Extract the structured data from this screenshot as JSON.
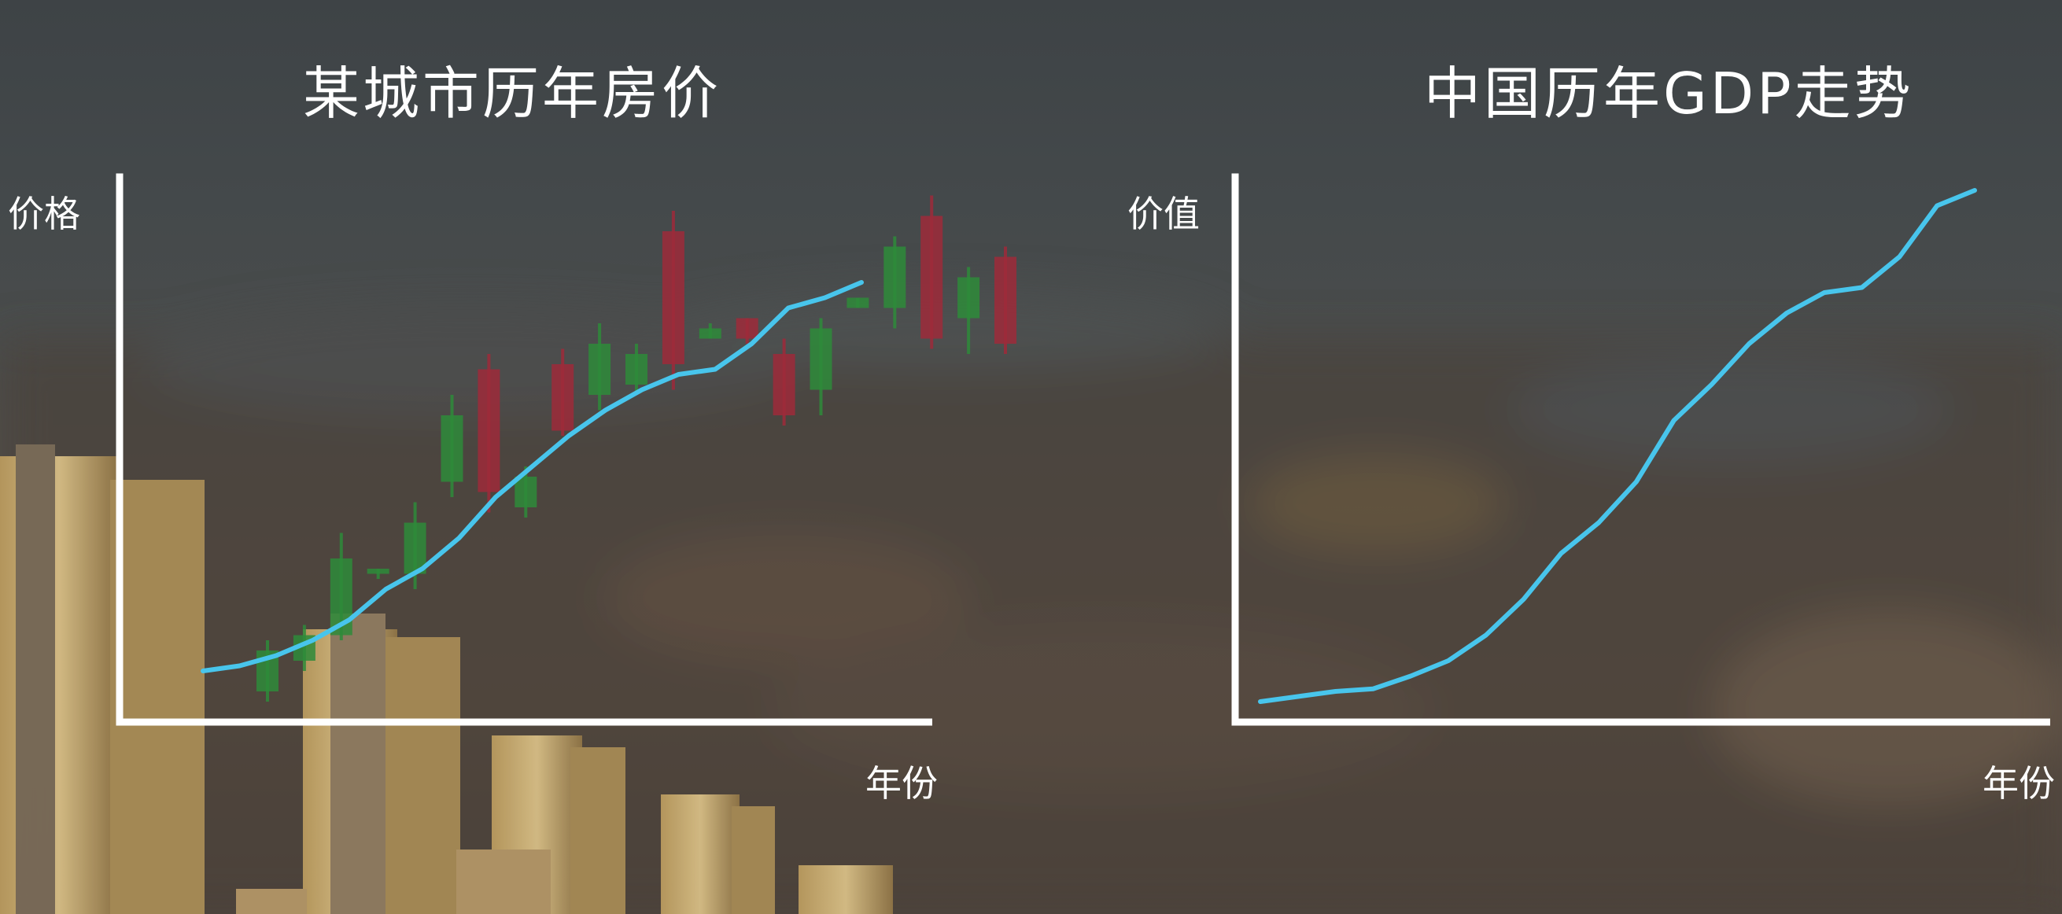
{
  "chart_data": [
    {
      "type": "candlestick",
      "title": "某城市历年房价",
      "xlabel": "年份",
      "ylabel": "价格",
      "ylim": [
        0,
        100
      ],
      "grid": false,
      "candles": [
        {
          "open": 4,
          "close": 12,
          "low": 2,
          "high": 14
        },
        {
          "open": 10,
          "close": 15,
          "low": 8,
          "high": 17
        },
        {
          "open": 15,
          "close": 30,
          "low": 14,
          "high": 35
        },
        {
          "open": 27,
          "close": 28,
          "low": 26,
          "high": 28
        },
        {
          "open": 27,
          "close": 37,
          "low": 24,
          "high": 41
        },
        {
          "open": 45,
          "close": 58,
          "low": 42,
          "high": 62
        },
        {
          "open": 67,
          "close": 43,
          "low": 39,
          "high": 70
        },
        {
          "open": 40,
          "close": 46,
          "low": 38,
          "high": 48
        },
        {
          "open": 68,
          "close": 55,
          "low": 54,
          "high": 71
        },
        {
          "open": 62,
          "close": 72,
          "low": 59,
          "high": 76
        },
        {
          "open": 64,
          "close": 70,
          "low": 62,
          "high": 72
        },
        {
          "open": 94,
          "close": 68,
          "low": 63,
          "high": 98
        },
        {
          "open": 73,
          "close": 75,
          "low": 73,
          "high": 76
        },
        {
          "open": 77,
          "close": 73,
          "low": 72,
          "high": 77
        },
        {
          "open": 70,
          "close": 58,
          "low": 56,
          "high": 73
        },
        {
          "open": 63,
          "close": 75,
          "low": 58,
          "high": 77
        },
        {
          "open": 79,
          "close": 81,
          "low": 79,
          "high": 81
        },
        {
          "open": 79,
          "close": 91,
          "low": 75,
          "high": 93
        },
        {
          "open": 97,
          "close": 73,
          "low": 71,
          "high": 101
        },
        {
          "open": 77,
          "close": 85,
          "low": 70,
          "high": 87
        },
        {
          "open": 89,
          "close": 72,
          "low": 70,
          "high": 91
        }
      ],
      "trend_line": [
        {
          "x": 0,
          "y": 8
        },
        {
          "x": 1,
          "y": 9
        },
        {
          "x": 2,
          "y": 11
        },
        {
          "x": 3,
          "y": 14
        },
        {
          "x": 4,
          "y": 18
        },
        {
          "x": 5,
          "y": 24
        },
        {
          "x": 6,
          "y": 28
        },
        {
          "x": 7,
          "y": 34
        },
        {
          "x": 8,
          "y": 42
        },
        {
          "x": 9,
          "y": 48
        },
        {
          "x": 10,
          "y": 54
        },
        {
          "x": 11,
          "y": 59
        },
        {
          "x": 12,
          "y": 63
        },
        {
          "x": 13,
          "y": 66
        },
        {
          "x": 14,
          "y": 67
        },
        {
          "x": 15,
          "y": 72
        },
        {
          "x": 16,
          "y": 79
        },
        {
          "x": 17,
          "y": 81
        },
        {
          "x": 18,
          "y": 84
        }
      ],
      "colors": {
        "up": "#2e8b3a",
        "down": "#9e2a3a",
        "trend": "#48c5ec",
        "axis": "#ffffff"
      }
    },
    {
      "type": "line",
      "title": "中国历年GDP走势",
      "xlabel": "年份",
      "ylabel": "价值",
      "ylim": [
        0,
        100
      ],
      "grid": false,
      "series": [
        {
          "values": [
            2,
            3,
            4,
            4.5,
            7,
            10,
            15,
            22,
            31,
            37,
            45,
            57,
            64,
            72,
            78,
            82,
            83,
            89,
            99,
            102
          ]
        }
      ],
      "colors": {
        "line": "#48c5ec",
        "axis": "#ffffff"
      }
    }
  ]
}
